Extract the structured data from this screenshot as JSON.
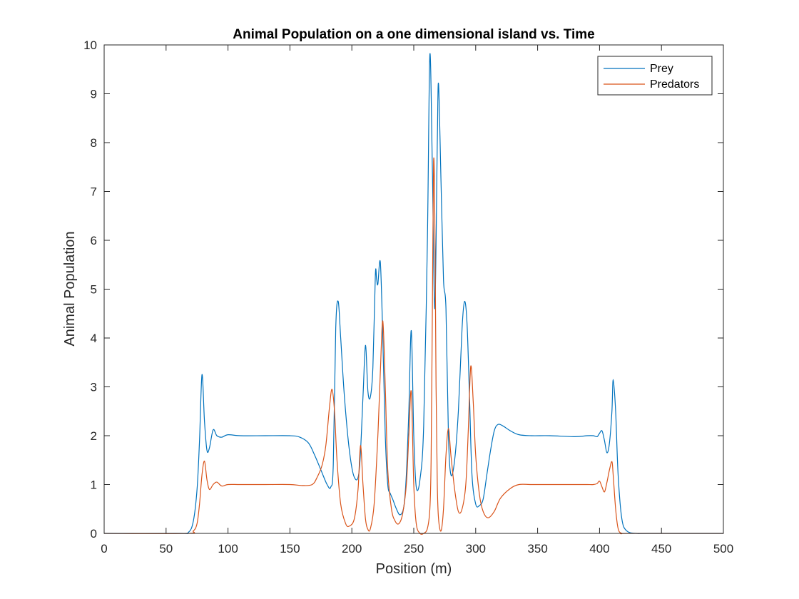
{
  "chart_data": {
    "type": "line",
    "title": "Animal Population on a one dimensional island vs. Time",
    "xlabel": "Position (m)",
    "ylabel": "Animal Population",
    "xlim": [
      0,
      500
    ],
    "ylim": [
      0,
      10
    ],
    "xticks": [
      0,
      50,
      100,
      150,
      200,
      250,
      300,
      350,
      400,
      450,
      500
    ],
    "yticks": [
      0,
      1,
      2,
      3,
      4,
      5,
      6,
      7,
      8,
      9,
      10
    ],
    "grid": false,
    "legend": "top-right",
    "series": [
      {
        "name": "Prey",
        "color": "#0072BD",
        "x": [
          0,
          60,
          68,
          72,
          75,
          77,
          79,
          81,
          83,
          85,
          88,
          91,
          95,
          100,
          110,
          130,
          150,
          158,
          165,
          170,
          175,
          180,
          183,
          185,
          187,
          189,
          191,
          194,
          198,
          202,
          206,
          209,
          211,
          213,
          215,
          217,
          219,
          220,
          221,
          223,
          225,
          227,
          229,
          231,
          233,
          236,
          239,
          242,
          244,
          246,
          248,
          250,
          252,
          255,
          258,
          261,
          263,
          265,
          267,
          269,
          270,
          272,
          274,
          276,
          278,
          280,
          283,
          286,
          289,
          291,
          293,
          295,
          297,
          300,
          303,
          306,
          309,
          312,
          315,
          318,
          322,
          328,
          335,
          345,
          360,
          380,
          390,
          395,
          398,
          400,
          402,
          404,
          406,
          408,
          410,
          411,
          413,
          415,
          418,
          422,
          430,
          440,
          500
        ],
        "y": [
          0,
          0,
          0.02,
          0.25,
          0.9,
          1.9,
          3.25,
          2.3,
          1.7,
          1.75,
          2.12,
          2.0,
          1.97,
          2.02,
          2.0,
          2.0,
          2.0,
          1.97,
          1.85,
          1.6,
          1.3,
          1.0,
          0.95,
          1.4,
          4.2,
          4.75,
          4.0,
          2.8,
          1.7,
          1.15,
          1.3,
          2.8,
          3.85,
          2.9,
          2.8,
          3.4,
          5.3,
          5.2,
          5.1,
          5.55,
          4.0,
          2.0,
          1.0,
          0.82,
          0.7,
          0.5,
          0.38,
          0.55,
          1.2,
          2.5,
          4.15,
          2.0,
          0.95,
          1.1,
          2.2,
          6.0,
          9.8,
          7.5,
          4.6,
          8.0,
          9.2,
          7.2,
          5.2,
          4.6,
          2.0,
          1.2,
          1.5,
          2.5,
          4.2,
          4.75,
          4.3,
          2.8,
          1.2,
          0.6,
          0.57,
          0.7,
          1.2,
          1.7,
          2.1,
          2.23,
          2.2,
          2.1,
          2.02,
          2.0,
          2.0,
          1.98,
          2.0,
          2.0,
          1.98,
          2.05,
          2.1,
          1.9,
          1.65,
          1.85,
          2.5,
          3.15,
          2.5,
          1.2,
          0.3,
          0.05,
          0.0,
          0.0,
          0
        ]
      },
      {
        "name": "Predators",
        "color": "#D95319",
        "x": [
          0,
          66,
          72,
          75,
          77,
          79,
          81,
          83,
          85,
          88,
          91,
          95,
          100,
          110,
          130,
          150,
          160,
          168,
          172,
          176,
          179,
          182,
          184,
          186,
          188,
          191,
          195,
          198,
          202,
          205,
          207,
          209,
          211,
          213,
          215,
          218,
          221,
          223,
          225,
          227,
          229,
          232,
          235,
          238,
          241,
          244,
          246,
          248,
          250,
          252,
          255,
          258,
          261,
          263,
          264,
          265,
          266,
          267,
          268,
          269,
          270,
          272,
          274,
          276,
          278,
          280,
          283,
          286,
          289,
          292,
          294,
          296,
          298,
          300,
          303,
          306,
          310,
          315,
          320,
          328,
          335,
          345,
          360,
          380,
          390,
          395,
          398,
          400,
          402,
          404,
          406,
          408,
          410,
          411,
          413,
          415,
          418,
          425,
          500
        ],
        "y": [
          0,
          0,
          0.05,
          0.2,
          0.6,
          1.2,
          1.48,
          1.1,
          0.9,
          1.0,
          1.05,
          0.97,
          1.0,
          1.0,
          1.0,
          1.0,
          0.98,
          1.0,
          1.15,
          1.4,
          1.8,
          2.6,
          2.95,
          2.5,
          1.5,
          0.6,
          0.2,
          0.15,
          0.3,
          0.9,
          1.8,
          1.0,
          0.3,
          0.08,
          0.1,
          0.6,
          2.0,
          3.3,
          4.35,
          3.0,
          1.3,
          0.5,
          0.25,
          0.2,
          0.4,
          1.0,
          2.0,
          2.9,
          1.0,
          0.2,
          0.0,
          0.0,
          0.1,
          0.5,
          1.5,
          4.5,
          7.6,
          6.5,
          3.0,
          1.0,
          0.3,
          0.05,
          0.5,
          1.6,
          2.15,
          1.6,
          0.9,
          0.45,
          0.5,
          1.0,
          2.1,
          3.42,
          2.7,
          1.6,
          0.8,
          0.45,
          0.32,
          0.45,
          0.72,
          0.92,
          1.0,
          1.0,
          1.0,
          1.0,
          1.0,
          1.0,
          1.02,
          1.07,
          0.95,
          0.85,
          1.05,
          1.3,
          1.47,
          1.2,
          0.5,
          0.1,
          0.0,
          0.0,
          0
        ]
      }
    ]
  }
}
